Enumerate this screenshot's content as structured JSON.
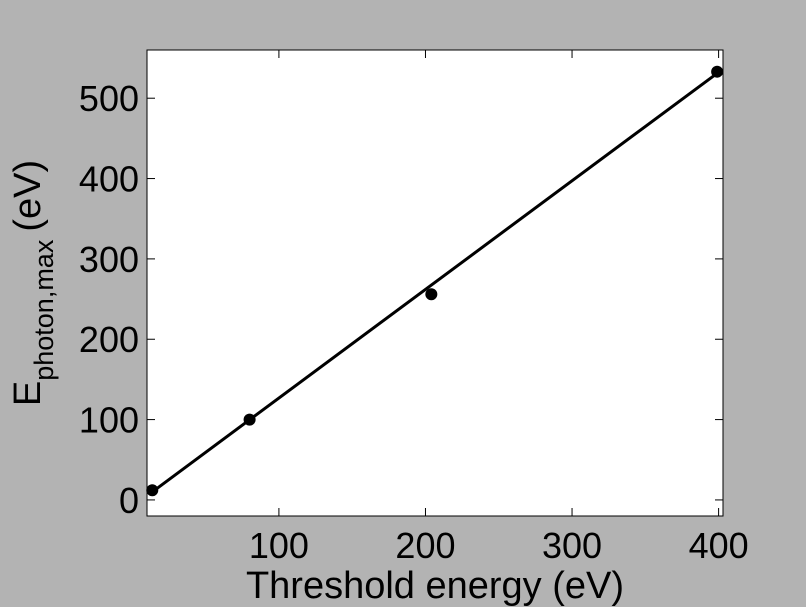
{
  "chart_data": {
    "type": "scatter",
    "title": "",
    "xlabel": "Threshold energy (eV)",
    "ylabel": {
      "base": "E",
      "subscript": "photon,max",
      "unit": "(eV)"
    },
    "xlim": [
      10,
      403
    ],
    "ylim": [
      -20,
      560
    ],
    "xticks": [
      100,
      200,
      300,
      400
    ],
    "yticks": [
      0,
      100,
      200,
      300,
      400,
      500
    ],
    "grid": false,
    "series": [
      {
        "type": "scatter",
        "x": [
          13.6,
          80,
          204,
          399
        ],
        "y": [
          12,
          100,
          256,
          533
        ]
      },
      {
        "type": "line",
        "x": [
          13.6,
          399
        ],
        "y": [
          10,
          531
        ]
      }
    ],
    "colors": {
      "background": "#b3b3b3",
      "plot_area": "#ffffff",
      "ink": "#000000"
    }
  }
}
